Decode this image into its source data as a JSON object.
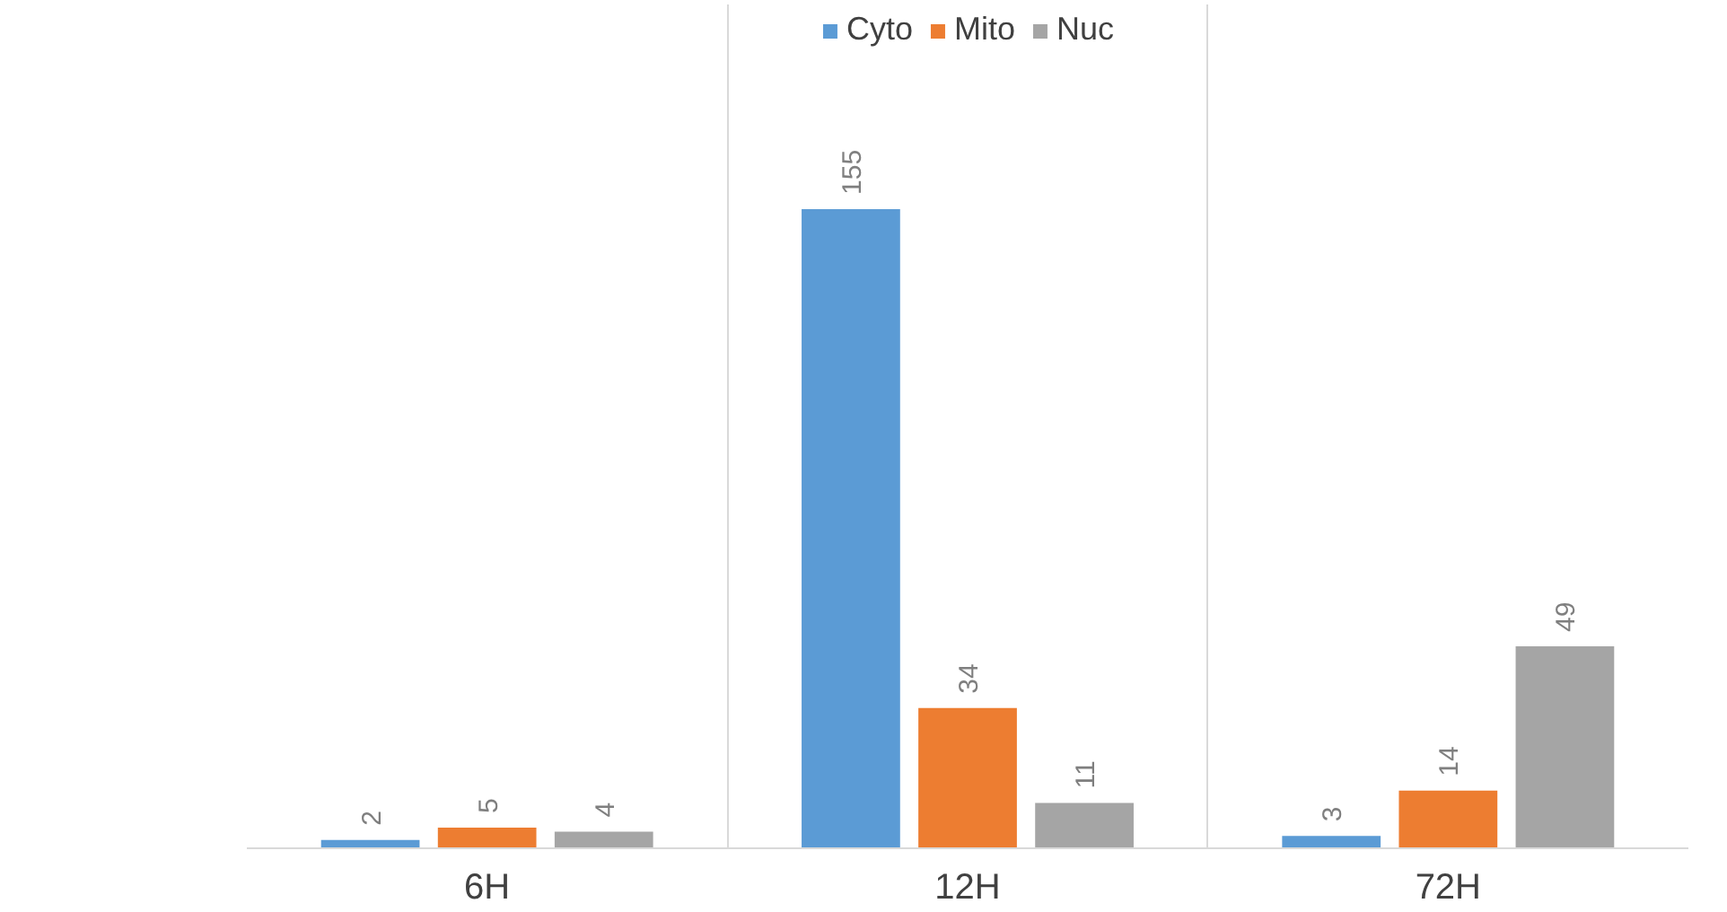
{
  "chart_data": {
    "type": "bar",
    "categories": [
      "6H",
      "12H",
      "72H"
    ],
    "series": [
      {
        "name": "Cyto",
        "color": "#5b9bd5",
        "values": [
          2,
          155,
          3
        ]
      },
      {
        "name": "Mito",
        "color": "#ed7d31",
        "values": [
          5,
          34,
          14
        ]
      },
      {
        "name": "Nuc",
        "color": "#a5a5a5",
        "values": [
          4,
          11,
          49
        ]
      }
    ],
    "data_labels": true,
    "legend": "top",
    "grid": "x",
    "tick_labels": "x"
  }
}
